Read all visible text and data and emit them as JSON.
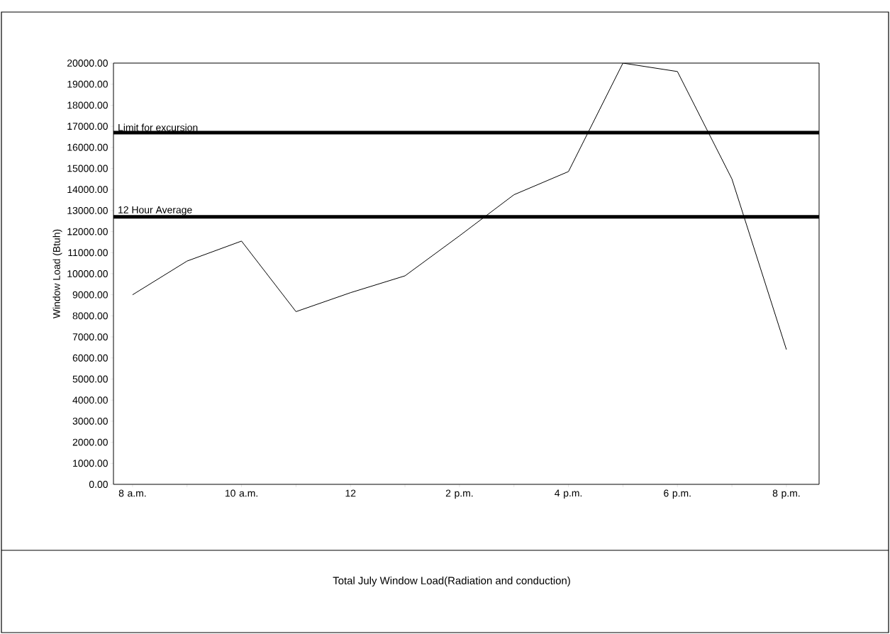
{
  "chart_data": {
    "type": "line",
    "ylabel": "Window Load (Btuh)",
    "annotations": [
      "Total July Window Load(Radiation and conduction)"
    ],
    "categories": [
      "8 a.m.",
      null,
      "10 a.m.",
      null,
      "12",
      null,
      "2 p.m.",
      null,
      "4 p.m.",
      null,
      "6 p.m.",
      null,
      "8 p.m."
    ],
    "series": [
      {
        "color": "#000000",
        "values": [
          9000,
          10600,
          11550,
          8200,
          9100,
          9900,
          11800,
          13750,
          14850,
          20000,
          19600,
          14500,
          6400
        ]
      }
    ],
    "ylim": [
      0,
      20000
    ],
    "yticks": [
      {
        "value": 0,
        "label": "0.00"
      },
      {
        "value": 1000,
        "label": "1000.00"
      },
      {
        "value": 2000,
        "label": "2000.00"
      },
      {
        "value": 3000,
        "label": "3000.00"
      },
      {
        "value": 4000,
        "label": "4000.00"
      },
      {
        "value": 5000,
        "label": "5000.00"
      },
      {
        "value": 6000,
        "label": "6000.00"
      },
      {
        "value": 7000,
        "label": "7000.00"
      },
      {
        "value": 8000,
        "label": "8000.00"
      },
      {
        "value": 9000,
        "label": "9000.00"
      },
      {
        "value": 10000,
        "label": "10000.00"
      },
      {
        "value": 11000,
        "label": "11000.00"
      },
      {
        "value": 12000,
        "label": "12000.00"
      },
      {
        "value": 13000,
        "label": "13000.00"
      },
      {
        "value": 14000,
        "label": "14000.00"
      },
      {
        "value": 15000,
        "label": "15000.00"
      },
      {
        "value": 16000,
        "label": "16000.00"
      },
      {
        "value": 17000,
        "label": "17000.00"
      },
      {
        "value": 18000,
        "label": "18000.00"
      },
      {
        "value": 19000,
        "label": "19000.00"
      },
      {
        "value": 20000,
        "label": "20000.00"
      }
    ],
    "ref_lines": [
      {
        "axis": "y",
        "value": 16700,
        "label": "Limit for excursion",
        "color": "#000000"
      },
      {
        "axis": "y",
        "value": 12700,
        "label": "12 Hour Average",
        "color": "#000000"
      }
    ],
    "grid": false,
    "marker": "none",
    "line_style": "solid"
  }
}
